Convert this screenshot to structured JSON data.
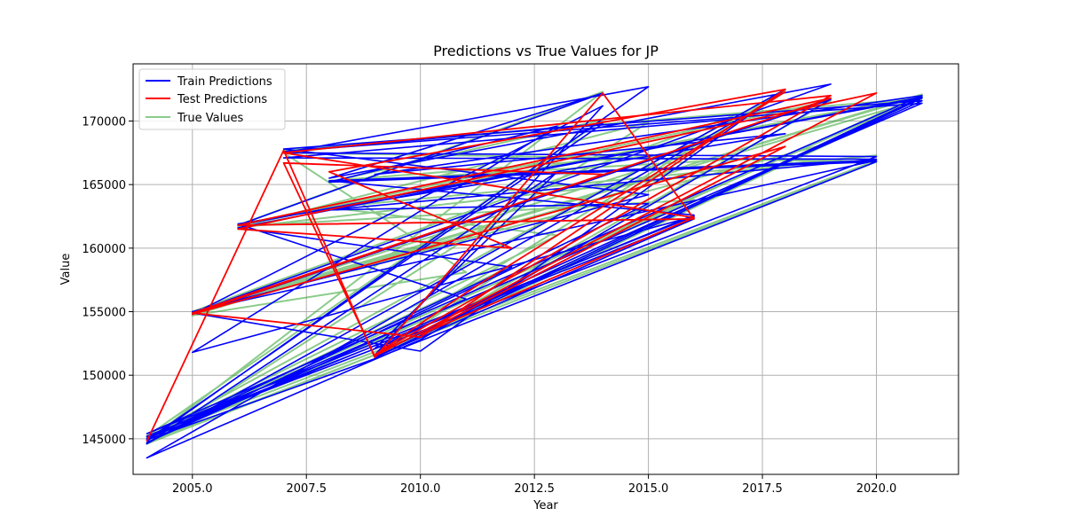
{
  "chart_data": {
    "type": "line",
    "title": "Predictions vs True Values for JP",
    "xlabel": "Year",
    "ylabel": "Value",
    "xlim": [
      2003.7,
      2021.8
    ],
    "ylim": [
      142200,
      174500
    ],
    "x_ticks": [
      2005.0,
      2007.5,
      2010.0,
      2012.5,
      2015.0,
      2017.5,
      2020.0
    ],
    "x_tick_labels": [
      "2005.0",
      "2007.5",
      "2010.0",
      "2012.5",
      "2015.0",
      "2017.5",
      "2020.0"
    ],
    "y_ticks": [
      145000,
      150000,
      155000,
      160000,
      165000,
      170000
    ],
    "y_tick_labels": [
      "145000",
      "150000",
      "155000",
      "160000",
      "165000",
      "170000"
    ],
    "grid": true,
    "legend_position": "top-left",
    "series": [
      {
        "name": "Train Predictions",
        "color": "#0000ff",
        "x": [
          2004,
          2015,
          2007,
          2020,
          2004,
          2016,
          2009,
          2021,
          2006,
          2014,
          2008,
          2019,
          2005,
          2010,
          2018,
          2004,
          2013,
          2009,
          2021,
          2007,
          2015,
          2005,
          2020,
          2008,
          2016,
          2004,
          2012,
          2006,
          2021,
          2009,
          2014,
          2005,
          2019,
          2010,
          2004,
          2017,
          2007,
          2020,
          2008,
          2015,
          2004,
          2011,
          2006,
          2018,
          2009,
          2021,
          2004,
          2016,
          2005,
          2013,
          2008,
          2020,
          2009,
          2004,
          2014,
          2007,
          2021,
          2004
        ],
        "y": [
          144800,
          172700,
          167500,
          167200,
          145200,
          162300,
          151400,
          171800,
          161800,
          172200,
          165500,
          172900,
          154900,
          151900,
          172500,
          144600,
          166000,
          152100,
          171600,
          167800,
          164200,
          155000,
          166900,
          165300,
          162600,
          145000,
          158500,
          161600,
          171900,
          151600,
          171200,
          154800,
          171700,
          152800,
          143500,
          170200,
          167100,
          167000,
          163000,
          163500,
          144700,
          156000,
          161900,
          169000,
          165800,
          172000,
          145400,
          162500,
          151800,
          169600,
          165200,
          166800,
          151300,
          144900,
          169800,
          167600,
          171400,
          145100
        ]
      },
      {
        "name": "Test Predictions",
        "color": "#ff0000",
        "x": [
          2004,
          2007,
          2009,
          2014,
          2016,
          2006,
          2019,
          2005,
          2010,
          2018,
          2008,
          2012,
          2006,
          2020,
          2009,
          2007,
          2014,
          2005,
          2018,
          2010,
          2016,
          2007,
          2019,
          2009,
          2011,
          2018
        ],
        "y": [
          144800,
          167700,
          151400,
          172200,
          162300,
          161800,
          171800,
          154900,
          153000,
          172500,
          166000,
          160000,
          161500,
          172200,
          151500,
          166700,
          165800,
          154800,
          168000,
          153200,
          162400,
          167500,
          172000,
          151600,
          156500,
          172300
        ]
      },
      {
        "name": "True Values",
        "color": "#2ca02c",
        "x": [
          2004,
          2014,
          2006,
          2021,
          2005,
          2016,
          2008,
          2020,
          2004,
          2012,
          2009,
          2021,
          2007,
          2017,
          2005,
          2019,
          2010,
          2004,
          2015,
          2006,
          2020,
          2008,
          2013,
          2004,
          2018,
          2009,
          2021,
          2005,
          2011,
          2007,
          2020,
          2004,
          2016,
          2006,
          2019,
          2010,
          2021,
          2004,
          2014,
          2008,
          2017,
          2005,
          2021
        ],
        "y": [
          144800,
          172300,
          161800,
          172000,
          154900,
          167500,
          165300,
          166900,
          145000,
          158600,
          151500,
          171800,
          167700,
          170600,
          155000,
          168300,
          153000,
          144600,
          169900,
          161600,
          167300,
          163200,
          161000,
          145100,
          172400,
          152600,
          172100,
          154700,
          158100,
          167500,
          166800,
          144700,
          163800,
          161700,
          171600,
          153300,
          171900,
          145200,
          170100,
          165200,
          167000,
          155000,
          171700
        ]
      }
    ]
  }
}
